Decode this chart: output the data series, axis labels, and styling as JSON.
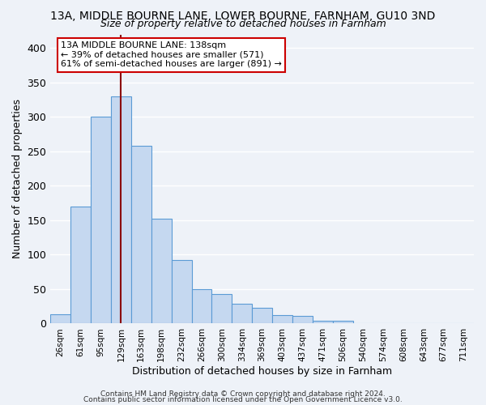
{
  "title": "13A, MIDDLE BOURNE LANE, LOWER BOURNE, FARNHAM, GU10 3ND",
  "subtitle": "Size of property relative to detached houses in Farnham",
  "xlabel": "Distribution of detached houses by size in Farnham",
  "ylabel": "Number of detached properties",
  "bar_labels": [
    "26sqm",
    "61sqm",
    "95sqm",
    "129sqm",
    "163sqm",
    "198sqm",
    "232sqm",
    "266sqm",
    "300sqm",
    "334sqm",
    "369sqm",
    "403sqm",
    "437sqm",
    "471sqm",
    "506sqm",
    "540sqm",
    "574sqm",
    "608sqm",
    "643sqm",
    "677sqm",
    "711sqm"
  ],
  "bar_values": [
    14,
    170,
    300,
    330,
    258,
    152,
    92,
    50,
    43,
    29,
    23,
    12,
    11,
    4,
    4,
    1,
    1,
    1,
    1,
    1,
    1
  ],
  "bar_color": "#c5d8f0",
  "bar_edge_color": "#5b9bd5",
  "vline_color": "#8b0000",
  "annotation_text": "13A MIDDLE BOURNE LANE: 138sqm\n← 39% of detached houses are smaller (571)\n61% of semi-detached houses are larger (891) →",
  "annotation_box_color": "white",
  "annotation_box_edge_color": "#cc0000",
  "ylim": [
    0,
    420
  ],
  "yticks": [
    0,
    50,
    100,
    150,
    200,
    250,
    300,
    350,
    400
  ],
  "footer_line1": "Contains HM Land Registry data © Crown copyright and database right 2024.",
  "footer_line2": "Contains public sector information licensed under the Open Government Licence v3.0.",
  "bg_color": "#eef2f8",
  "grid_color": "#ffffff"
}
